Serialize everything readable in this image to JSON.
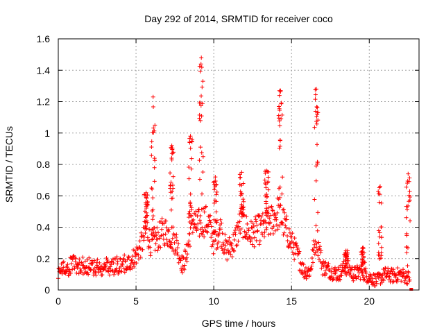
{
  "chart_data": {
    "type": "scatter",
    "title": "Day 292 of 2014, SRMTID for receiver coco",
    "xlabel": "GPS time / hours",
    "ylabel": "SRMTID / TECUs",
    "xlim": [
      0,
      23.2
    ],
    "ylim": [
      0,
      1.6
    ],
    "xticks": [
      "0",
      "5",
      "10",
      "15",
      "20"
    ],
    "xtick_values": [
      0,
      5,
      10,
      15,
      20
    ],
    "yticks": [
      "0",
      "0.2",
      "0.4",
      "0.6",
      "0.8",
      "1",
      "1.2",
      "1.4",
      "1.6"
    ],
    "ytick_values": [
      0,
      0.2,
      0.4,
      0.6,
      0.8,
      1.0,
      1.2,
      1.4,
      1.6
    ],
    "grid": true,
    "marker": "+",
    "series_color": "#ff0000",
    "profile": [
      [
        0.0,
        0.12
      ],
      [
        0.5,
        0.14
      ],
      [
        1.0,
        0.16
      ],
      [
        1.5,
        0.16
      ],
      [
        2.0,
        0.15
      ],
      [
        2.5,
        0.14
      ],
      [
        3.0,
        0.15
      ],
      [
        3.5,
        0.15
      ],
      [
        4.0,
        0.16
      ],
      [
        4.5,
        0.17
      ],
      [
        5.0,
        0.22
      ],
      [
        5.4,
        0.3
      ],
      [
        5.7,
        0.4
      ],
      [
        5.9,
        0.3
      ],
      [
        6.3,
        0.32
      ],
      [
        6.8,
        0.38
      ],
      [
        7.2,
        0.35
      ],
      [
        7.6,
        0.3
      ],
      [
        8.0,
        0.15
      ],
      [
        8.3,
        0.25
      ],
      [
        8.6,
        0.45
      ],
      [
        8.9,
        0.4
      ],
      [
        9.3,
        0.45
      ],
      [
        9.7,
        0.42
      ],
      [
        10.0,
        0.3
      ],
      [
        10.4,
        0.4
      ],
      [
        10.8,
        0.25
      ],
      [
        11.3,
        0.3
      ],
      [
        11.8,
        0.45
      ],
      [
        12.3,
        0.35
      ],
      [
        12.8,
        0.38
      ],
      [
        13.3,
        0.4
      ],
      [
        13.8,
        0.45
      ],
      [
        14.2,
        0.5
      ],
      [
        14.6,
        0.4
      ],
      [
        15.0,
        0.3
      ],
      [
        15.4,
        0.22
      ],
      [
        15.8,
        0.12
      ],
      [
        16.2,
        0.12
      ],
      [
        16.6,
        0.35
      ],
      [
        17.0,
        0.15
      ],
      [
        17.5,
        0.12
      ],
      [
        18.0,
        0.1
      ],
      [
        18.5,
        0.15
      ],
      [
        19.0,
        0.1
      ],
      [
        19.5,
        0.12
      ],
      [
        20.0,
        0.08
      ],
      [
        20.5,
        0.06
      ],
      [
        21.0,
        0.1
      ],
      [
        21.5,
        0.09
      ],
      [
        22.0,
        0.1
      ],
      [
        22.5,
        0.08
      ]
    ],
    "spikes": [
      {
        "t": 5.65,
        "peak": 0.62
      },
      {
        "t": 6.1,
        "peak": 1.23
      },
      {
        "t": 7.3,
        "peak": 0.92
      },
      {
        "t": 8.5,
        "peak": 0.98
      },
      {
        "t": 9.2,
        "peak": 1.48
      },
      {
        "t": 10.1,
        "peak": 0.72
      },
      {
        "t": 11.8,
        "peak": 0.75
      },
      {
        "t": 13.4,
        "peak": 0.76
      },
      {
        "t": 14.3,
        "peak": 1.27
      },
      {
        "t": 16.6,
        "peak": 1.28
      },
      {
        "t": 18.5,
        "peak": 0.25
      },
      {
        "t": 19.6,
        "peak": 0.27
      },
      {
        "t": 20.7,
        "peak": 0.66
      },
      {
        "t": 22.5,
        "peak": 0.74
      }
    ],
    "last_point": {
      "x": 22.7,
      "y": 0.0
    }
  }
}
